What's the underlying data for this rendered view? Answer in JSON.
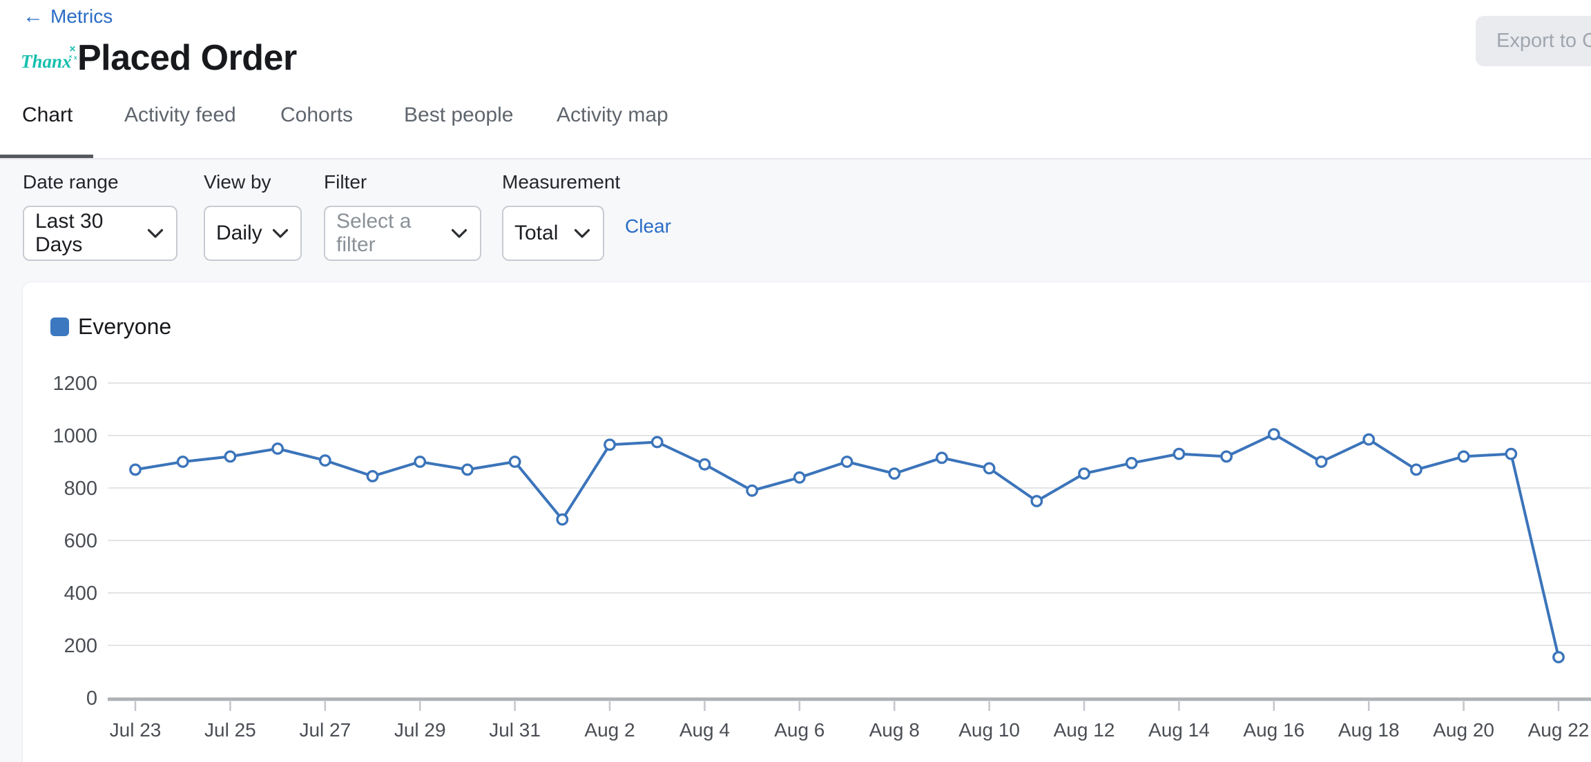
{
  "header": {
    "back_label": "Metrics",
    "logo_text": "Thanx",
    "title": "Placed Order",
    "export_label": "Export to CSV"
  },
  "icons": {
    "back_arrow": "←",
    "logo_sparkles": "✕ ˟ ͯ"
  },
  "tabs": [
    {
      "label": "Chart",
      "active": true
    },
    {
      "label": "Activity feed",
      "active": false
    },
    {
      "label": "Cohorts",
      "active": false
    },
    {
      "label": "Best people",
      "active": false
    },
    {
      "label": "Activity map",
      "active": false
    }
  ],
  "filters": {
    "date_range_label": "Date range",
    "date_range_value": "Last 30 Days",
    "view_by_label": "View by",
    "view_by_value": "Daily",
    "filter_label": "Filter",
    "filter_placeholder": "Select a filter",
    "measurement_label": "Measurement",
    "measurement_value": "Total",
    "clear_label": "Clear"
  },
  "chart_data": {
    "type": "line",
    "title": "",
    "xlabel": "",
    "ylabel": "",
    "grid": true,
    "legend_position": "top-left",
    "ylim": [
      0,
      1200
    ],
    "y_ticks": [
      0,
      200,
      400,
      600,
      800,
      1000,
      1200
    ],
    "x_label_interval": 2,
    "x": [
      "Jul 23",
      "Jul 24",
      "Jul 25",
      "Jul 26",
      "Jul 27",
      "Jul 28",
      "Jul 29",
      "Jul 30",
      "Jul 31",
      "Aug 1",
      "Aug 2",
      "Aug 3",
      "Aug 4",
      "Aug 5",
      "Aug 6",
      "Aug 7",
      "Aug 8",
      "Aug 9",
      "Aug 10",
      "Aug 11",
      "Aug 12",
      "Aug 13",
      "Aug 14",
      "Aug 15",
      "Aug 16",
      "Aug 17",
      "Aug 18",
      "Aug 19",
      "Aug 20",
      "Aug 21",
      "Aug 22"
    ],
    "series": [
      {
        "name": "Everyone",
        "color": "#3b74ba",
        "point_style": "open-circle",
        "values": [
          870,
          900,
          920,
          950,
          905,
          845,
          900,
          870,
          900,
          680,
          965,
          975,
          890,
          790,
          840,
          900,
          855,
          915,
          875,
          750,
          855,
          895,
          930,
          920,
          1005,
          900,
          985,
          870,
          920,
          930,
          155
        ]
      }
    ]
  },
  "colors": {
    "link_blue": "#2a6cc5",
    "logo_teal": "#16bfad",
    "line_blue": "#3b74ba",
    "legend_blue": "#3b78c0",
    "grid_gray": "#d9dbde",
    "axis_gray": "#aeb1b5",
    "axis_text": "#4a4e54"
  }
}
